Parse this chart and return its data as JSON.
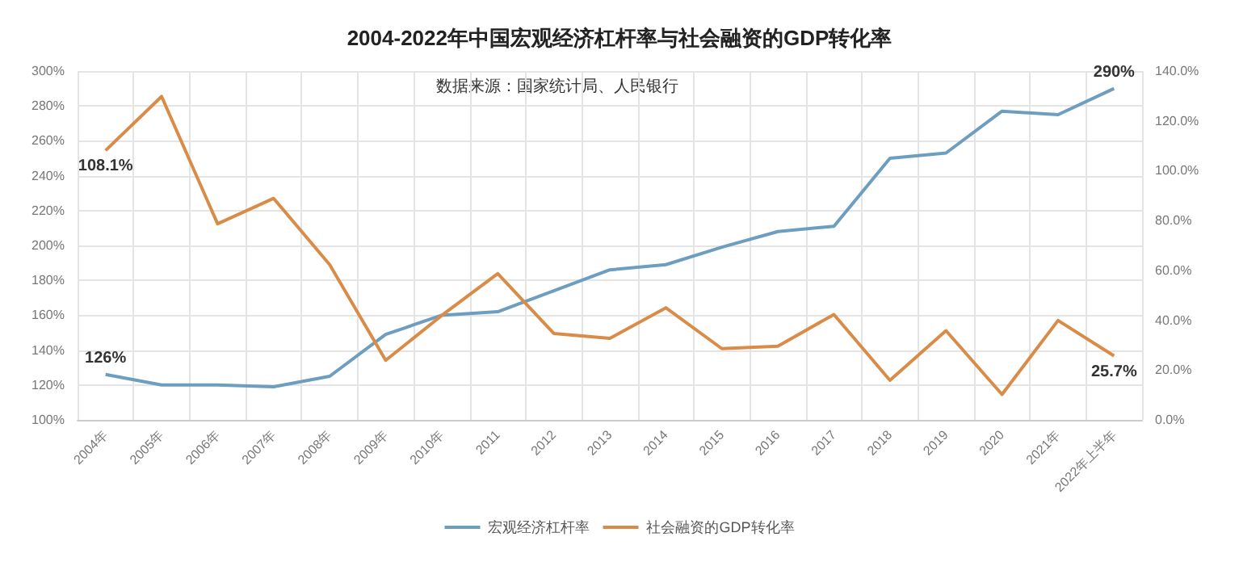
{
  "chart_data": {
    "type": "line",
    "title": "2004-2022年中国宏观经济杠杆率与社会融资的GDP转化率",
    "annotations": [
      "数据来源：国家统计局、人民银行"
    ],
    "categories": [
      "2004年",
      "2005年",
      "2006年",
      "2007年",
      "2008年",
      "2009年",
      "2010年",
      "2011",
      "2012",
      "2013",
      "2014",
      "2015",
      "2016",
      "2017",
      "2018",
      "2019",
      "2020",
      "2021年",
      "2022年上半年"
    ],
    "series": [
      {
        "name": "宏观经济杠杆率",
        "color": "#6d9ec0",
        "values": [
          126,
          120,
          120,
          119,
          125,
          149,
          160,
          162,
          174,
          186,
          189,
          199,
          208,
          211,
          250,
          253,
          277,
          275,
          290
        ],
        "value_labels": [
          "126%",
          null,
          null,
          null,
          null,
          null,
          null,
          null,
          null,
          null,
          null,
          null,
          null,
          null,
          null,
          null,
          null,
          null,
          "290%"
        ]
      },
      {
        "name": "社会融资的GDP转化率",
        "color": "#d98c48",
        "axis": "y2",
        "values": [
          108.1,
          129.8,
          78.7,
          88.9,
          62.3,
          23.9,
          41.9,
          58.7,
          34.7,
          32.7,
          45,
          28.6,
          29.6,
          42.3,
          15.9,
          35.8,
          10.2,
          39.9,
          25.7
        ],
        "value_labels": [
          "108.1%",
          null,
          null,
          null,
          null,
          null,
          null,
          null,
          null,
          null,
          null,
          null,
          null,
          null,
          null,
          null,
          null,
          null,
          "25.7%"
        ]
      }
    ],
    "ylim": [
      100,
      300
    ],
    "yticks": [
      {
        "value": 100,
        "label": "100%"
      },
      {
        "value": 120,
        "label": "120%"
      },
      {
        "value": 140,
        "label": "140%"
      },
      {
        "value": 160,
        "label": "160%"
      },
      {
        "value": 180,
        "label": "180%"
      },
      {
        "value": 200,
        "label": "200%"
      },
      {
        "value": 220,
        "label": "220%"
      },
      {
        "value": 240,
        "label": "240%"
      },
      {
        "value": 260,
        "label": "260%"
      },
      {
        "value": 280,
        "label": "280%"
      },
      {
        "value": 300,
        "label": "300%"
      }
    ],
    "y2lim": [
      0,
      140
    ],
    "y2ticks": [
      {
        "value": 0,
        "label": "0.0%"
      },
      {
        "value": 20,
        "label": "20.0%"
      },
      {
        "value": 40,
        "label": "40.0%"
      },
      {
        "value": 60,
        "label": "60.0%"
      },
      {
        "value": 80,
        "label": "80.0%"
      },
      {
        "value": 100,
        "label": "100.0%"
      },
      {
        "value": 120,
        "label": "120.0%"
      },
      {
        "value": 140,
        "label": "140.0%"
      }
    ],
    "grid": true,
    "legend": "bottom",
    "marker": "none",
    "line_style": "solid"
  }
}
